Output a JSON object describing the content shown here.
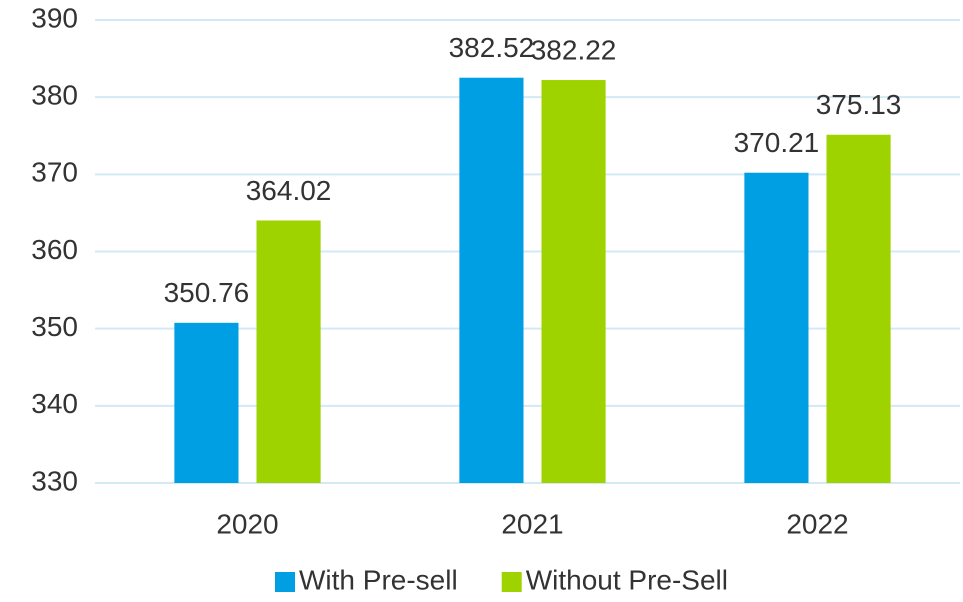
{
  "chart_data": {
    "type": "bar",
    "categories": [
      "2020",
      "2021",
      "2022"
    ],
    "series": [
      {
        "name": "With Pre-sell",
        "color": "#009fe3",
        "values": [
          350.76,
          382.52,
          370.21
        ]
      },
      {
        "name": "Without Pre-Sell",
        "color": "#9fd300",
        "values": [
          364.02,
          382.22,
          375.13
        ]
      }
    ],
    "ylim": [
      330,
      390
    ],
    "yticks": [
      330,
      340,
      350,
      360,
      370,
      380,
      390
    ],
    "grid": true,
    "legend": "bottom"
  }
}
